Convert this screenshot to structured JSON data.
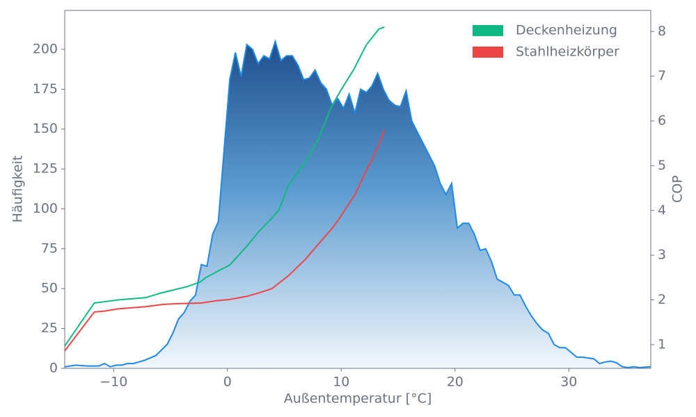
{
  "chart_data": {
    "type": "line",
    "xlabel": "Außentemperatur [°C]",
    "ylabel": "Häufigkeit",
    "y2label": "COP",
    "xlim": [
      -14.3,
      37.2
    ],
    "ylim": [
      0,
      224.4
    ],
    "y2lim": [
      0.47,
      8.47
    ],
    "xticks": [
      {
        "value": -10,
        "label": "−10"
      },
      0,
      10,
      20,
      30
    ],
    "yticks": [
      0,
      25,
      50,
      75,
      100,
      125,
      150,
      175,
      200
    ],
    "y2ticks": [
      1,
      2,
      3,
      4,
      5,
      6,
      7,
      8
    ],
    "legend": "upper right",
    "series": [
      {
        "kind": "area",
        "color": "#1e88e5",
        "x": [
          -14.3,
          -13.3,
          -12.3,
          -11.3,
          -10.8,
          -10.3,
          -9.8,
          -9.3,
          -8.8,
          -8.3,
          -7.8,
          -7.3,
          -6.3,
          -5.3,
          -4.8,
          -4.3,
          -3.8,
          -3.3,
          -2.8,
          -2.3,
          -1.8,
          -1.3,
          -0.8,
          0.2,
          0.7,
          1.2,
          1.7,
          2.2,
          2.7,
          3.2,
          3.7,
          4.2,
          4.7,
          5.2,
          5.7,
          6.2,
          6.7,
          7.2,
          7.7,
          8.2,
          8.7,
          9.2,
          9.7,
          10.2,
          10.7,
          11.2,
          11.7,
          12.2,
          12.7,
          13.2,
          13.7,
          14.2,
          14.7,
          15.2,
          15.7,
          16.2,
          16.7,
          17.2,
          17.7,
          18.2,
          18.7,
          19.2,
          19.7,
          20.2,
          20.7,
          21.2,
          21.7,
          22.2,
          22.7,
          23.2,
          23.7,
          24.7,
          25.2,
          25.7,
          26.2,
          26.7,
          27.2,
          27.7,
          28.2,
          28.7,
          29.2,
          29.7,
          30.7,
          31.2,
          31.7,
          32.2,
          32.7,
          33.2,
          33.7,
          34.2,
          34.7,
          35.2,
          35.7,
          36.2,
          37.2
        ],
        "values": [
          1,
          2,
          1.5,
          1.5,
          3,
          1,
          2,
          2,
          3,
          3,
          4,
          5,
          8,
          15,
          22,
          31,
          35,
          42,
          46,
          65,
          64,
          84,
          92,
          181,
          198,
          183,
          203,
          200,
          191,
          196,
          194,
          205,
          193,
          196,
          196,
          190,
          181,
          182,
          187,
          179,
          175,
          165,
          169,
          163,
          172,
          160,
          175,
          173,
          177,
          185,
          175,
          168,
          165,
          164,
          174,
          155,
          148,
          141,
          134,
          127,
          116,
          109,
          116,
          88,
          91,
          91,
          84,
          74,
          75,
          67,
          56,
          52,
          46,
          46,
          39,
          33,
          28,
          24,
          22,
          15,
          13,
          13,
          7,
          7,
          6.5,
          6,
          3,
          4,
          4.5,
          3.5,
          1,
          0.5,
          1,
          0.5,
          1
        ]
      },
      {
        "name": "Deckenheizung",
        "color": "#10b981",
        "axis": "y2",
        "x": [
          -14.3,
          -11.7,
          -9.6,
          -7.2,
          -5.9,
          -3.5,
          -2.4,
          -1.9,
          0.2,
          1.7,
          2.8,
          3.9,
          4.5,
          5.4,
          6.9,
          8.0,
          9.1,
          10.0,
          11.1,
          12.2,
          13.3,
          13.8
        ],
        "values": [
          0.97,
          1.93,
          2.0,
          2.05,
          2.15,
          2.3,
          2.4,
          2.5,
          2.78,
          3.2,
          3.54,
          3.83,
          4.0,
          4.58,
          5.1,
          5.6,
          6.3,
          6.7,
          7.15,
          7.7,
          8.05,
          8.1
        ]
      },
      {
        "name": "Stahlheizkörper",
        "color": "#ef4444",
        "axis": "y2",
        "x": [
          -14.3,
          -11.7,
          -10.8,
          -9.6,
          -7.2,
          -5.6,
          -4.1,
          -2.3,
          -1.0,
          0.2,
          1.7,
          2.8,
          3.9,
          5.4,
          6.9,
          8.0,
          9.2,
          9.7,
          10.6,
          11.2,
          12.3,
          12.7,
          13.3,
          13.8
        ],
        "values": [
          0.86,
          1.73,
          1.75,
          1.8,
          1.85,
          1.9,
          1.92,
          1.93,
          1.98,
          2.01,
          2.08,
          2.16,
          2.25,
          2.55,
          2.92,
          3.25,
          3.6,
          3.77,
          4.12,
          4.35,
          4.95,
          5.13,
          5.47,
          5.8
        ]
      }
    ]
  }
}
